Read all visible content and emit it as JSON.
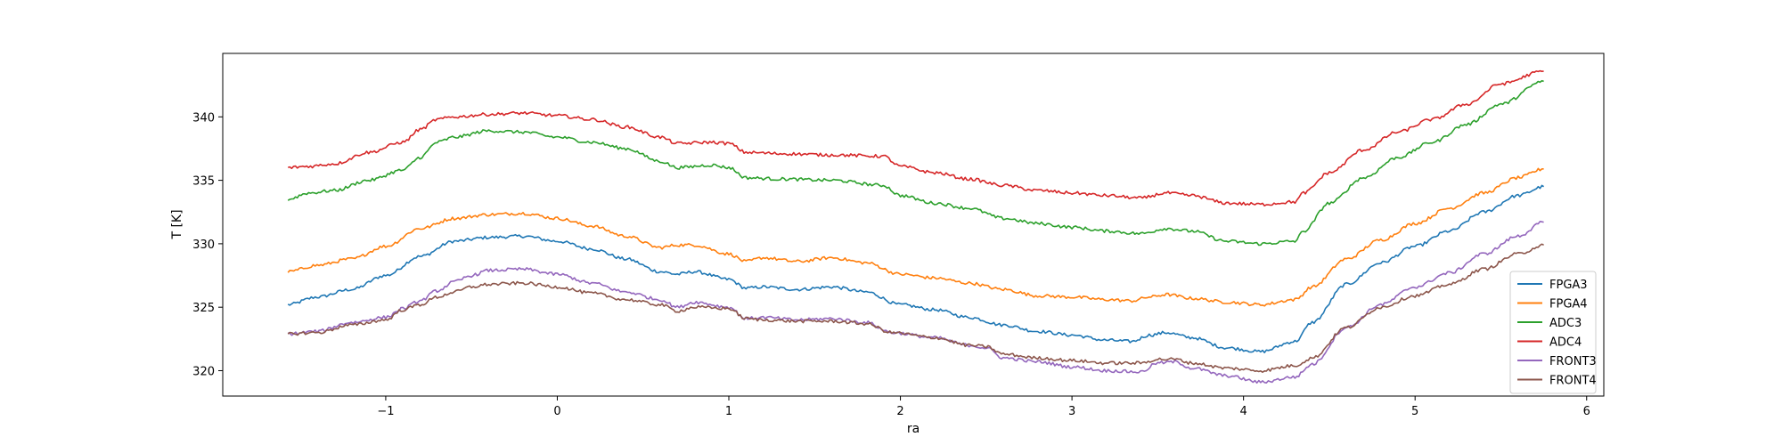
{
  "chart_data": {
    "type": "line",
    "xlabel": "ra",
    "ylabel": "T [K]",
    "xlim": [
      -1.95,
      6.1
    ],
    "ylim": [
      318,
      345
    ],
    "xticks": [
      {
        "value": -1,
        "label": "−1"
      },
      {
        "value": 0,
        "label": "0"
      },
      {
        "value": 1,
        "label": "1"
      },
      {
        "value": 2,
        "label": "2"
      },
      {
        "value": 3,
        "label": "3"
      },
      {
        "value": 4,
        "label": "4"
      },
      {
        "value": 5,
        "label": "5"
      },
      {
        "value": 6,
        "label": "6"
      }
    ],
    "yticks": [
      {
        "value": 320,
        "label": "320"
      },
      {
        "value": 325,
        "label": "325"
      },
      {
        "value": 330,
        "label": "330"
      },
      {
        "value": 335,
        "label": "335"
      },
      {
        "value": 340,
        "label": "340"
      }
    ],
    "grid": false,
    "legend_position": "lower-right",
    "series": [
      {
        "name": "FPGA3",
        "color": "#1f77b4",
        "x": [
          -1.57,
          -1.4,
          -1.2,
          -1.0,
          -0.8,
          -0.6,
          -0.4,
          -0.2,
          0.0,
          0.2,
          0.4,
          0.6,
          0.7,
          0.8,
          1.0,
          1.1,
          1.2,
          1.4,
          1.6,
          1.8,
          2.0,
          2.2,
          2.4,
          2.6,
          2.8,
          3.0,
          3.2,
          3.35,
          3.45,
          3.55,
          3.7,
          3.9,
          4.1,
          4.3,
          4.4,
          4.6,
          4.8,
          5.0,
          5.2,
          5.4,
          5.6,
          5.75
        ],
        "y": [
          325.2,
          325.8,
          326.4,
          327.5,
          329.0,
          330.2,
          330.5,
          330.6,
          330.2,
          329.6,
          328.8,
          327.8,
          327.6,
          327.8,
          327.2,
          326.5,
          326.6,
          326.4,
          326.6,
          326.2,
          325.2,
          324.8,
          324.2,
          323.6,
          323.1,
          322.8,
          322.4,
          322.3,
          322.8,
          323.0,
          322.6,
          321.8,
          321.5,
          322.3,
          323.8,
          326.8,
          328.5,
          329.8,
          331.0,
          332.5,
          333.8,
          334.5
        ]
      },
      {
        "name": "FPGA4",
        "color": "#ff7f0e",
        "x": [
          -1.57,
          -1.4,
          -1.2,
          -1.0,
          -0.8,
          -0.6,
          -0.4,
          -0.2,
          0.0,
          0.2,
          0.4,
          0.6,
          0.7,
          0.8,
          1.0,
          1.1,
          1.2,
          1.4,
          1.6,
          1.8,
          2.0,
          2.2,
          2.4,
          2.6,
          2.8,
          3.0,
          3.2,
          3.35,
          3.45,
          3.55,
          3.7,
          3.9,
          4.1,
          4.3,
          4.4,
          4.6,
          4.8,
          5.0,
          5.2,
          5.4,
          5.6,
          5.75
        ],
        "y": [
          327.8,
          328.3,
          328.8,
          329.8,
          331.2,
          332.0,
          332.3,
          332.4,
          332.0,
          331.4,
          330.6,
          329.7,
          329.9,
          329.9,
          329.2,
          328.6,
          328.9,
          328.6,
          328.9,
          328.5,
          327.6,
          327.3,
          326.9,
          326.4,
          325.9,
          325.8,
          325.6,
          325.5,
          325.8,
          326.0,
          325.7,
          325.4,
          325.2,
          325.6,
          326.6,
          328.8,
          330.3,
          331.6,
          332.8,
          334.0,
          335.2,
          335.9
        ]
      },
      {
        "name": "ADC3",
        "color": "#2ca02c",
        "x": [
          -1.57,
          -1.45,
          -1.3,
          -1.1,
          -0.9,
          -0.8,
          -0.7,
          -0.6,
          -0.4,
          -0.2,
          0.0,
          0.2,
          0.4,
          0.6,
          0.7,
          0.9,
          1.0,
          1.1,
          1.3,
          1.6,
          1.9,
          2.0,
          2.2,
          2.4,
          2.6,
          2.8,
          3.0,
          3.2,
          3.4,
          3.55,
          3.7,
          3.9,
          4.1,
          4.3,
          4.35,
          4.5,
          4.7,
          4.9,
          5.1,
          5.3,
          5.5,
          5.75
        ],
        "y": [
          333.5,
          334.0,
          334.2,
          335.0,
          335.8,
          336.8,
          338.0,
          338.4,
          338.9,
          338.8,
          338.4,
          338.0,
          337.5,
          336.5,
          336.0,
          336.2,
          336.0,
          335.2,
          335.1,
          335.0,
          334.6,
          333.8,
          333.2,
          332.8,
          332.0,
          331.6,
          331.3,
          331.0,
          330.8,
          331.2,
          331.0,
          330.2,
          330.0,
          330.2,
          331.0,
          333.2,
          335.2,
          336.8,
          338.0,
          339.4,
          341.0,
          342.8
        ]
      },
      {
        "name": "ADC4",
        "color": "#d62728",
        "x": [
          -1.57,
          -1.45,
          -1.3,
          -1.1,
          -0.9,
          -0.8,
          -0.7,
          -0.6,
          -0.4,
          -0.2,
          0.0,
          0.2,
          0.4,
          0.6,
          0.7,
          0.9,
          1.0,
          1.1,
          1.3,
          1.6,
          1.9,
          2.0,
          2.2,
          2.4,
          2.6,
          2.8,
          3.0,
          3.2,
          3.4,
          3.55,
          3.7,
          3.9,
          4.1,
          4.3,
          4.35,
          4.5,
          4.7,
          4.9,
          5.1,
          5.3,
          5.5,
          5.75
        ],
        "y": [
          336.0,
          336.1,
          336.3,
          337.2,
          338.0,
          339.0,
          339.8,
          340.0,
          340.2,
          340.3,
          340.1,
          339.8,
          339.2,
          338.4,
          337.9,
          338.0,
          337.9,
          337.2,
          337.1,
          337.0,
          336.9,
          336.1,
          335.6,
          335.1,
          334.6,
          334.2,
          334.0,
          333.8,
          333.6,
          334.0,
          333.8,
          333.2,
          333.1,
          333.3,
          334.0,
          335.6,
          337.4,
          338.8,
          339.8,
          341.0,
          342.6,
          343.6
        ]
      },
      {
        "name": "FRONT3",
        "color": "#9467bd",
        "x": [
          -1.57,
          -1.4,
          -1.2,
          -1.0,
          -0.9,
          -0.8,
          -0.7,
          -0.6,
          -0.5,
          -0.4,
          -0.2,
          0.0,
          0.2,
          0.4,
          0.6,
          0.7,
          0.8,
          1.0,
          1.1,
          1.2,
          1.4,
          1.6,
          1.8,
          1.95,
          2.2,
          2.4,
          2.5,
          2.6,
          2.8,
          3.0,
          3.2,
          3.4,
          3.5,
          3.6,
          3.7,
          3.9,
          4.1,
          4.3,
          4.4,
          4.6,
          4.8,
          5.0,
          5.2,
          5.4,
          5.6,
          5.75
        ],
        "y": [
          322.9,
          323.1,
          323.8,
          324.2,
          324.9,
          325.5,
          326.3,
          327.0,
          327.5,
          327.9,
          328.0,
          327.6,
          326.9,
          326.2,
          325.6,
          325.0,
          325.4,
          325.0,
          324.1,
          324.2,
          324.0,
          324.1,
          323.8,
          323.0,
          322.6,
          322.0,
          321.8,
          321.0,
          320.7,
          320.3,
          320.0,
          319.9,
          320.6,
          320.7,
          320.2,
          319.6,
          319.1,
          319.5,
          320.5,
          323.4,
          325.2,
          326.6,
          327.7,
          329.2,
          330.6,
          331.7
        ]
      },
      {
        "name": "FRONT4",
        "color": "#8c564b",
        "x": [
          -1.57,
          -1.4,
          -1.2,
          -1.0,
          -0.9,
          -0.8,
          -0.7,
          -0.6,
          -0.5,
          -0.4,
          -0.2,
          0.0,
          0.2,
          0.4,
          0.6,
          0.7,
          0.8,
          1.0,
          1.1,
          1.2,
          1.4,
          1.6,
          1.8,
          1.95,
          2.2,
          2.4,
          2.5,
          2.6,
          2.8,
          3.0,
          3.2,
          3.4,
          3.5,
          3.6,
          3.7,
          3.9,
          4.1,
          4.3,
          4.4,
          4.6,
          4.8,
          5.0,
          5.2,
          5.4,
          5.6,
          5.75
        ],
        "y": [
          322.9,
          323.0,
          323.6,
          324.0,
          324.8,
          325.2,
          325.8,
          326.2,
          326.6,
          326.8,
          326.9,
          326.6,
          326.1,
          325.6,
          325.2,
          324.7,
          325.0,
          324.9,
          324.1,
          324.0,
          323.9,
          323.9,
          323.7,
          323.0,
          322.6,
          322.0,
          321.9,
          321.3,
          321.0,
          320.8,
          320.6,
          320.6,
          320.9,
          320.9,
          320.6,
          320.2,
          320.0,
          320.4,
          321.0,
          323.4,
          325.0,
          325.9,
          326.8,
          328.0,
          329.2,
          329.9
        ]
      }
    ]
  }
}
